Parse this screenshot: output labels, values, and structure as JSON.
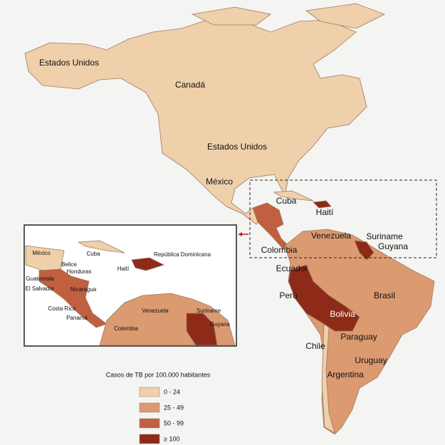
{
  "map": {
    "labels": [
      "Estados Unidos",
      "Canadá",
      "Estados Unidos",
      "México",
      "Cuba",
      "Haití",
      "Venezuela",
      "Suriname",
      "Guyana",
      "Colombia",
      "Ecuador",
      "Perú",
      "Brasil",
      "Bolivia",
      "Paraguay",
      "Chile",
      "Uruguay",
      "Argentina"
    ],
    "inset_labels": [
      "México",
      "Cuba",
      "República Dominicana",
      "Belice",
      "Honduras",
      "Haití",
      "Guatemala",
      "El Salvador",
      "Nicaragua",
      "Costa Rica",
      "Panamá",
      "Venezuela",
      "Suriname",
      "Colombia",
      "Guyana"
    ],
    "legend": {
      "title": "Casos de TB por 100.000 habitantes",
      "items": [
        {
          "label": "0 - 24",
          "color": "#efd0aa"
        },
        {
          "label": "25 - 49",
          "color": "#dc9a70"
        },
        {
          "label": "50 - 99",
          "color": "#c0603f"
        },
        {
          "label": "≥ 100",
          "color": "#8e2b18"
        }
      ]
    }
  }
}
